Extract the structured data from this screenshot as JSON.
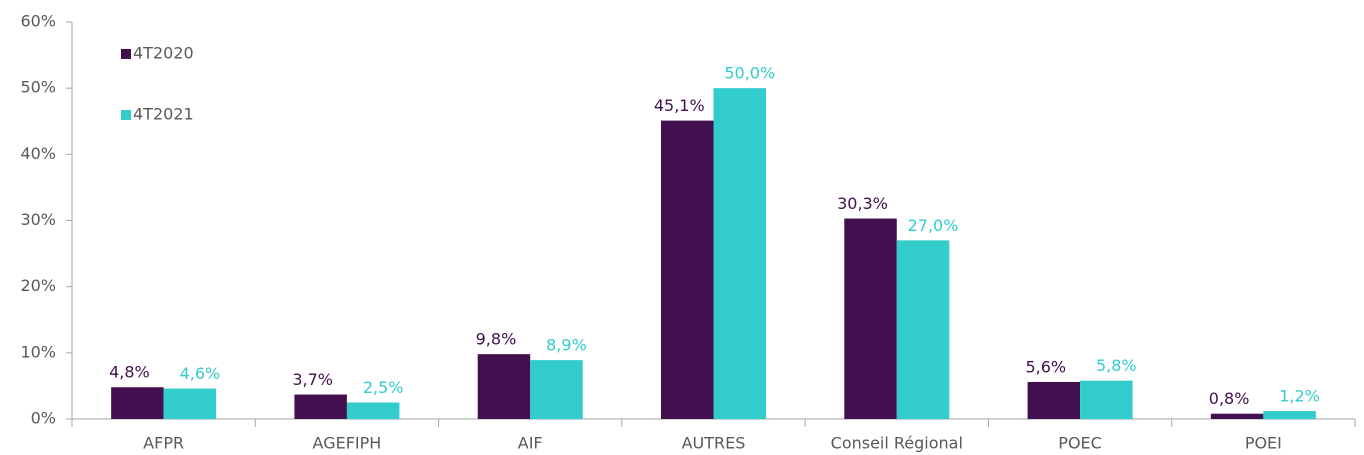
{
  "chart_data": {
    "type": "bar",
    "categories": [
      "AFPR",
      "AGEFIPH",
      "AIF",
      "AUTRES",
      "Conseil Régional",
      "POEC",
      "POEI"
    ],
    "series": [
      {
        "name": "4T2020",
        "color": "#43104f",
        "values": [
          4.8,
          3.7,
          9.8,
          45.1,
          30.3,
          5.6,
          0.8
        ],
        "value_labels": [
          "4,8%",
          "3,7%",
          "9,8%",
          "45,1%",
          "30,3%",
          "5,6%",
          "0,8%"
        ]
      },
      {
        "name": "4T2021",
        "color": "#33cccc",
        "values": [
          4.6,
          2.5,
          8.9,
          50.0,
          27.0,
          5.8,
          1.2
        ],
        "value_labels": [
          "4,6%",
          "2,5%",
          "8,9%",
          "50,0%",
          "27,0%",
          "5,8%",
          "1,2%"
        ]
      }
    ],
    "ylim": [
      0,
      60
    ],
    "yticks": [
      {
        "value": 0,
        "label": "0%"
      },
      {
        "value": 10,
        "label": "10%"
      },
      {
        "value": 20,
        "label": "20%"
      },
      {
        "value": 30,
        "label": "30%"
      },
      {
        "value": 40,
        "label": "40%"
      },
      {
        "value": 50,
        "label": "50%"
      },
      {
        "value": 60,
        "label": "60%"
      }
    ],
    "legend": "top-left"
  }
}
